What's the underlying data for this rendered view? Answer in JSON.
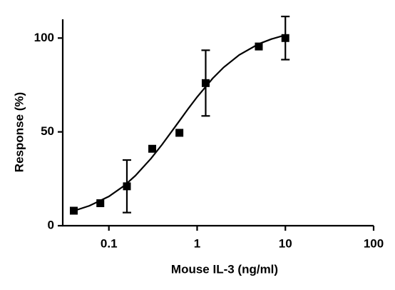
{
  "chart_data": {
    "type": "scatter",
    "x_label": "Mouse IL-3 (ng/ml)",
    "y_label": "Response (%)",
    "xscale": "log",
    "color": "#000000",
    "x": [
      0.04,
      0.08,
      0.16,
      0.31,
      0.63,
      1.25,
      5,
      10
    ],
    "values": [
      8,
      12,
      21,
      41,
      49.5,
      76,
      95.5,
      100
    ],
    "errors": [
      null,
      null,
      14,
      null,
      null,
      17.5,
      null,
      11.5
    ],
    "curve": {
      "x": [
        0.04,
        0.06,
        0.1,
        0.15,
        0.2,
        0.3,
        0.4,
        0.6,
        0.8,
        1,
        1.5,
        2,
        3,
        5,
        7,
        10
      ],
      "y": [
        7.9,
        10.6,
        15.6,
        21.4,
        26.7,
        35.8,
        43.2,
        54.5,
        62.6,
        68.6,
        78.5,
        84.4,
        91,
        96.9,
        99.5,
        101.6
      ]
    },
    "xlim": [
      0.03,
      100
    ],
    "ylim": [
      0,
      110
    ],
    "xticks": [
      0.1,
      1,
      10,
      100
    ],
    "yticks": [
      0,
      50,
      100
    ]
  }
}
